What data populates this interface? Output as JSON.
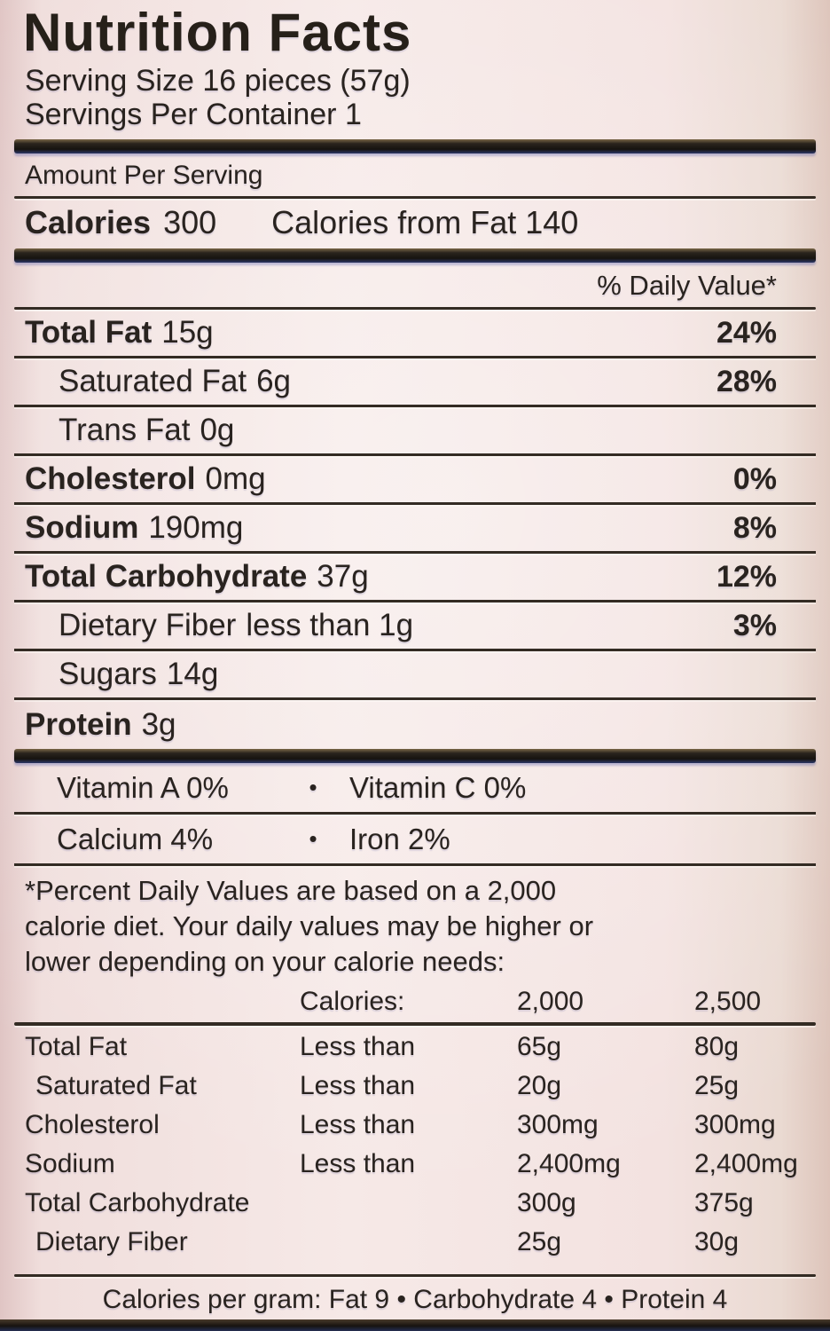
{
  "colors": {
    "background": "#f2e2e0",
    "ink": "#29231f",
    "bar": "#17130f"
  },
  "title": "Nutrition Facts",
  "serving_size": "Serving Size 16 pieces (57g)",
  "servings_per_container": "Servings Per Container 1",
  "amount_per_serving": "Amount Per Serving",
  "calories": {
    "label": "Calories",
    "value": "300",
    "from_fat": "Calories from Fat 140"
  },
  "daily_value_header": "% Daily Value*",
  "bullet": "•",
  "nutrients": [
    {
      "name": "Total Fat",
      "amount": "15g",
      "dv": "24%"
    },
    {
      "name": "Saturated Fat",
      "amount": "6g",
      "dv": "28%"
    },
    {
      "name": "Trans Fat",
      "amount": "0g",
      "dv": ""
    },
    {
      "name": "Cholesterol",
      "amount": "0mg",
      "dv": "0%"
    },
    {
      "name": "Sodium",
      "amount": "190mg",
      "dv": "8%"
    },
    {
      "name": "Total Carbohydrate",
      "amount": "37g",
      "dv": "12%"
    },
    {
      "name": "Dietary Fiber",
      "amount": "less than 1g",
      "dv": "3%"
    },
    {
      "name": "Sugars",
      "amount": "14g",
      "dv": ""
    },
    {
      "name": "Protein",
      "amount": "3g",
      "dv": ""
    }
  ],
  "vitamins": [
    {
      "left": "Vitamin A 0%",
      "right": "Vitamin C 0%"
    },
    {
      "left": "Calcium 4%",
      "right": "Iron 2%"
    }
  ],
  "footnote_lines": [
    "*Percent Daily Values are based on a 2,000",
    "calorie diet. Your daily values may be higher or",
    "lower depending on your calorie needs:"
  ],
  "dv_table": {
    "header": {
      "label": "Calories:",
      "col_2000": "2,000",
      "col_2500": "2,500"
    },
    "rows": [
      {
        "name": "Total Fat",
        "qualifier": "Less than",
        "v2000": "65g",
        "v2500": "80g"
      },
      {
        "name": "Saturated Fat",
        "qualifier": "Less than",
        "v2000": "20g",
        "v2500": "25g"
      },
      {
        "name": "Cholesterol",
        "qualifier": "Less than",
        "v2000": "300mg",
        "v2500": "300mg"
      },
      {
        "name": "Sodium",
        "qualifier": "Less than",
        "v2000": "2,400mg",
        "v2500": "2,400mg"
      },
      {
        "name": "Total Carbohydrate",
        "qualifier": "",
        "v2000": "300g",
        "v2500": "375g"
      },
      {
        "name": "Dietary Fiber",
        "qualifier": "",
        "v2000": "25g",
        "v2500": "30g"
      }
    ]
  },
  "calories_per_gram": "Calories per gram: Fat 9 • Carbohydrate 4 • Protein 4"
}
